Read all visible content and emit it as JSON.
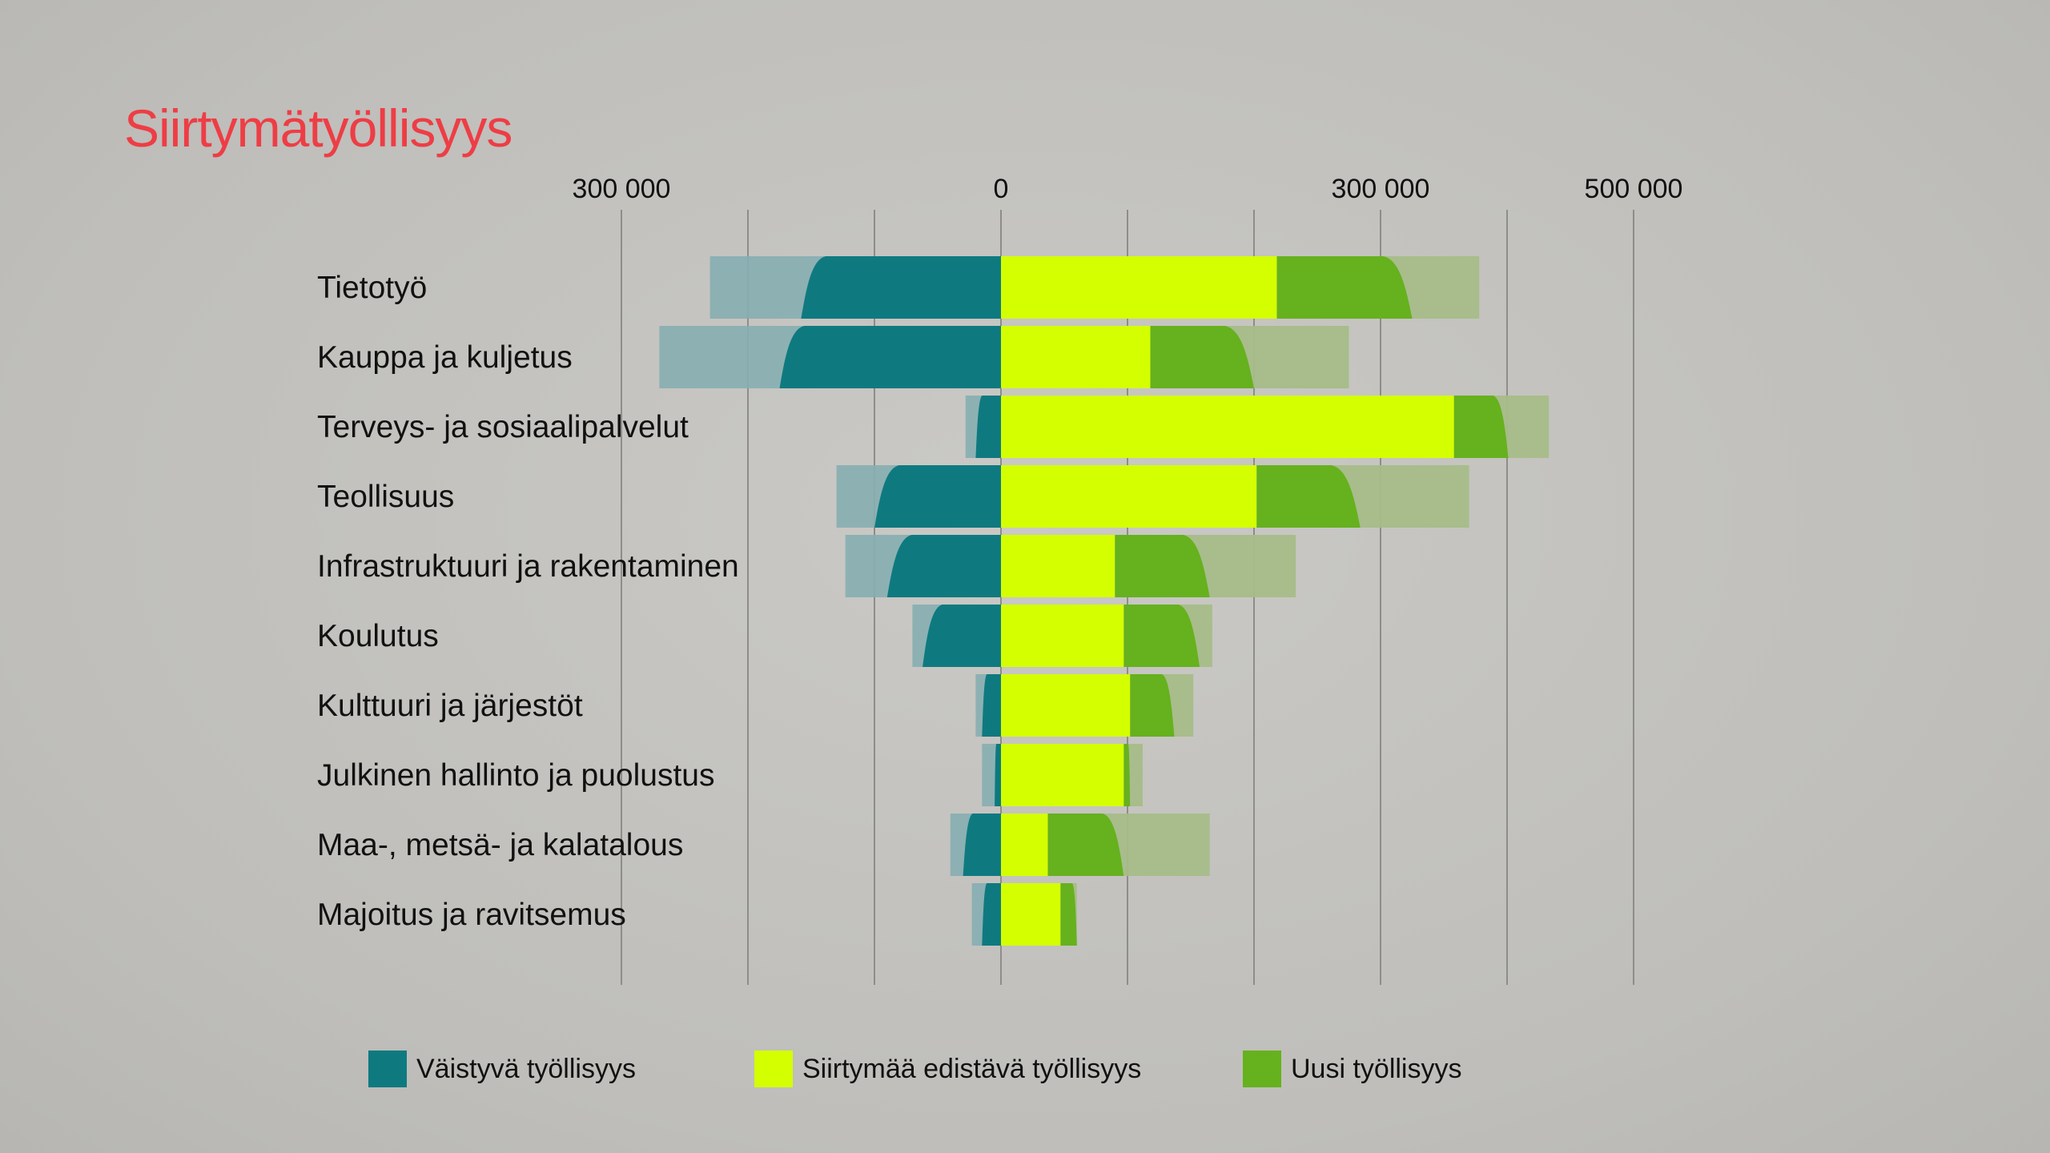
{
  "title": "Siirtymätyöllisyys",
  "chart_data": {
    "type": "bar",
    "orientation": "horizontal-diverging-stacked",
    "categories": [
      "Tietotyö",
      "Kauppa ja kuljetus",
      "Terveys- ja sosiaalipalvelut",
      "Teollisuus",
      "Infrastruktuuri ja rakentaminen",
      "Koulutus",
      "Kulttuuri ja järjestöt",
      "Julkinen hallinto ja puolustus",
      "Maa-, metsä- ja kalatalous",
      "Majoitus ja ravitsemus"
    ],
    "series": [
      {
        "name": "Väistyvä työllisyys",
        "direction": "negative",
        "values": [
          230000,
          270000,
          28000,
          130000,
          123000,
          70000,
          20000,
          15000,
          40000,
          23000
        ],
        "core_values": [
          158000,
          175000,
          20000,
          100000,
          90000,
          62000,
          15000,
          5000,
          30000,
          15000
        ],
        "color": "#0e7a80",
        "faded_color": "#86aeb1"
      },
      {
        "name": "Siirtymää edistävä työllisyys",
        "direction": "positive",
        "values": [
          218000,
          118000,
          358000,
          202000,
          90000,
          97000,
          102000,
          97000,
          37000,
          47000
        ],
        "color": "#d4ff00"
      },
      {
        "name": "Uusi työllisyys",
        "direction": "positive",
        "values": [
          160000,
          157000,
          75000,
          168000,
          143000,
          70000,
          50000,
          15000,
          128000,
          13000
        ],
        "core_values": [
          107000,
          82000,
          43000,
          82000,
          75000,
          60000,
          35000,
          5000,
          60000,
          13000
        ],
        "color": "#66b11e",
        "faded_color": "#a7bd88"
      }
    ],
    "x_tick_labels": [
      "300 000",
      "0",
      "300 000",
      "500 000"
    ],
    "x_tick_values": [
      -300000,
      0,
      300000,
      500000
    ],
    "xlim": [
      -300000,
      500000
    ],
    "gridline_step": 100000,
    "legend_position": "bottom"
  },
  "legend": [
    {
      "label": "Väistyvä työllisyys",
      "color": "#0e7a80"
    },
    {
      "label": "Siirtymää edistävä työllisyys",
      "color": "#d4ff00"
    },
    {
      "label": "Uusi työllisyys",
      "color": "#66b11e"
    }
  ]
}
